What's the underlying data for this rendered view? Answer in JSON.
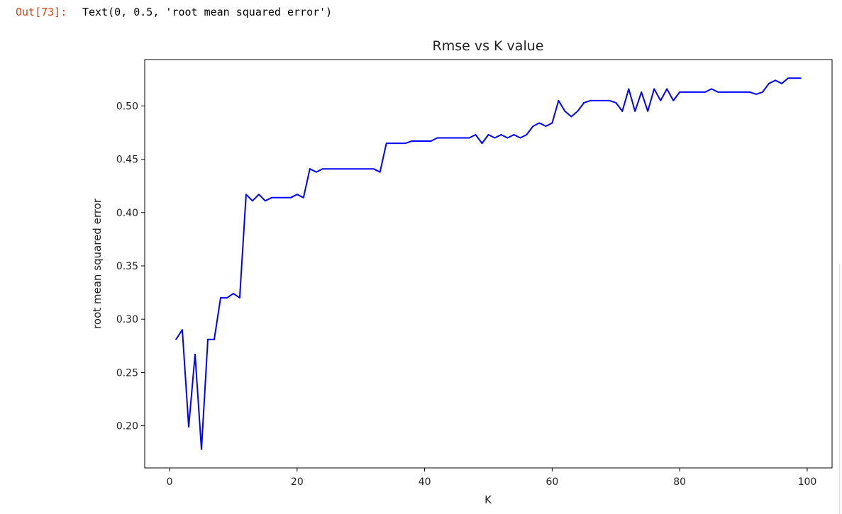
{
  "cell": {
    "out_prompt": "Out[73]:",
    "out_text": "Text(0, 0.5, 'root mean squared error')"
  },
  "chart_data": {
    "type": "line",
    "title": "Rmse vs K value",
    "xlabel": "K",
    "ylabel": "root mean squared error",
    "xlim": [
      -3.9,
      103.9
    ],
    "ylim": [
      0.1605,
      0.5435
    ],
    "xticks": [
      0,
      20,
      40,
      60,
      80,
      100
    ],
    "yticks": [
      0.2,
      0.25,
      0.3,
      0.35,
      0.4,
      0.45,
      0.5
    ],
    "xtick_labels": [
      "0",
      "20",
      "40",
      "60",
      "80",
      "100"
    ],
    "ytick_labels": [
      "0.20",
      "0.25",
      "0.30",
      "0.35",
      "0.40",
      "0.45",
      "0.50"
    ],
    "grid": false,
    "line_color": "#0000ff",
    "x": [
      1,
      2,
      3,
      4,
      5,
      6,
      7,
      8,
      9,
      10,
      11,
      12,
      13,
      14,
      15,
      16,
      17,
      18,
      19,
      20,
      21,
      22,
      23,
      24,
      25,
      26,
      27,
      28,
      29,
      30,
      31,
      32,
      33,
      34,
      35,
      36,
      37,
      38,
      39,
      40,
      41,
      42,
      43,
      44,
      45,
      46,
      47,
      48,
      49,
      50,
      51,
      52,
      53,
      54,
      55,
      56,
      57,
      58,
      59,
      60,
      61,
      62,
      63,
      64,
      65,
      66,
      67,
      68,
      69,
      70,
      71,
      72,
      73,
      74,
      75,
      76,
      77,
      78,
      79,
      80,
      81,
      82,
      83,
      84,
      85,
      86,
      87,
      88,
      89,
      90,
      91,
      92,
      93,
      94,
      95,
      96,
      97,
      98,
      99
    ],
    "values": [
      0.281,
      0.29,
      0.199,
      0.267,
      0.178,
      0.281,
      0.281,
      0.32,
      0.32,
      0.324,
      0.32,
      0.417,
      0.411,
      0.417,
      0.411,
      0.414,
      0.414,
      0.414,
      0.414,
      0.417,
      0.414,
      0.441,
      0.438,
      0.441,
      0.441,
      0.441,
      0.441,
      0.441,
      0.441,
      0.441,
      0.441,
      0.441,
      0.438,
      0.465,
      0.465,
      0.465,
      0.465,
      0.467,
      0.467,
      0.467,
      0.467,
      0.47,
      0.47,
      0.47,
      0.47,
      0.47,
      0.47,
      0.473,
      0.465,
      0.473,
      0.47,
      0.473,
      0.47,
      0.473,
      0.47,
      0.473,
      0.481,
      0.484,
      0.481,
      0.484,
      0.505,
      0.495,
      0.49,
      0.495,
      0.503,
      0.505,
      0.505,
      0.505,
      0.505,
      0.503,
      0.495,
      0.516,
      0.495,
      0.513,
      0.495,
      0.516,
      0.505,
      0.516,
      0.505,
      0.513,
      0.513,
      0.513,
      0.513,
      0.513,
      0.516,
      0.513,
      0.513,
      0.513,
      0.513,
      0.513,
      0.513,
      0.511,
      0.513,
      0.521,
      0.524,
      0.521,
      0.526,
      0.526,
      0.526
    ]
  }
}
